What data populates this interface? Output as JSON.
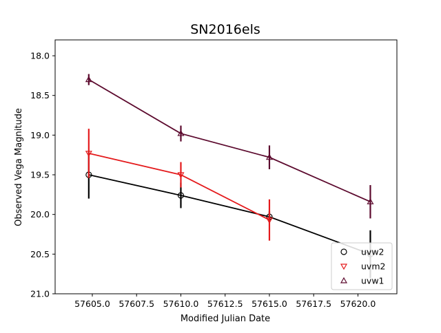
{
  "chart_data": {
    "type": "scatter",
    "title": "SN2016els",
    "xlabel": "Modified Julian Date",
    "ylabel": "Observed Vega Magnitude",
    "xlim": [
      57602.9,
      57622.2
    ],
    "ylim": [
      21.0,
      17.8
    ],
    "y_inverted": true,
    "xticks": [
      57605.0,
      57607.5,
      57610.0,
      57612.5,
      57615.0,
      57617.5,
      57620.0
    ],
    "xtick_labels": [
      "57605.0",
      "57607.5",
      "57610.0",
      "57612.5",
      "57615.0",
      "57617.5",
      "57620.0"
    ],
    "yticks": [
      18.0,
      18.5,
      19.0,
      19.5,
      20.0,
      20.5,
      21.0
    ],
    "ytick_labels": [
      "18.0",
      "18.5",
      "19.0",
      "19.5",
      "20.0",
      "20.5",
      "21.0"
    ],
    "grid": false,
    "legend_position": "lower-right",
    "series": [
      {
        "name": "uvw2",
        "color": "#000000",
        "marker": "circle",
        "x": [
          57604.8,
          57610.0,
          57615.0,
          57620.7
        ],
        "y": [
          19.5,
          19.76,
          20.03,
          20.5
        ],
        "yerr": [
          0.3,
          0.16,
          0.07,
          0.3
        ]
      },
      {
        "name": "uvm2",
        "color": "#e41a1c",
        "marker": "triangle-down",
        "x": [
          57604.8,
          57610.0,
          57615.0
        ],
        "y": [
          19.23,
          19.5,
          20.07
        ],
        "yerr": [
          0.31,
          0.16,
          0.26
        ]
      },
      {
        "name": "uvw1",
        "color": "#5c0a2e",
        "marker": "triangle-up",
        "x": [
          57604.8,
          57610.0,
          57615.0,
          57620.7
        ],
        "y": [
          18.3,
          18.98,
          19.28,
          19.84
        ],
        "yerr": [
          0.07,
          0.1,
          0.15,
          0.21
        ]
      }
    ]
  }
}
